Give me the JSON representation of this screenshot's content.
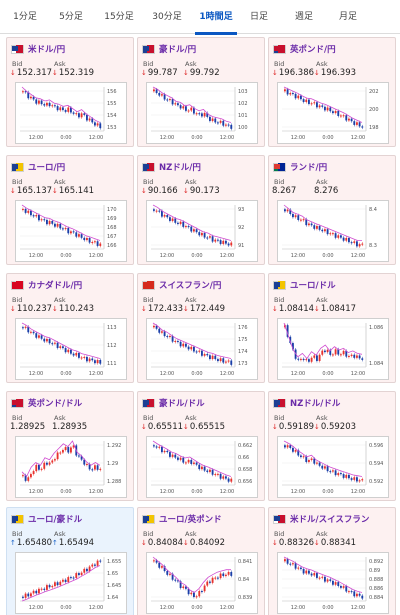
{
  "tabs": [
    "1分足",
    "5分足",
    "15分足",
    "30分足",
    "1時間足",
    "日足",
    "週足",
    "月足"
  ],
  "active_tab": 4,
  "colors": {
    "accent": "#0a57c2",
    "pair_text": "#6a2aa8",
    "down": "#dd2222",
    "up": "#1b64c8",
    "candle_up": "#e8322e",
    "candle_down": "#1a3ea8",
    "ma_line": "#d04bd0"
  },
  "labels": {
    "bid": "Bid",
    "ask": "Ask"
  },
  "x_tick": "12:00",
  "cards": [
    {
      "pair": "米ドル/円",
      "flag": [
        "#ffffff",
        "#1c3f94",
        "#c8102e"
      ],
      "bid": "152.317",
      "ask": "152.319",
      "dir": "down",
      "yticks": [
        "156",
        "155",
        "154",
        "153"
      ],
      "x_ticks": [
        "12:00",
        "0:00",
        "12:00"
      ],
      "trend": [
        155.6,
        155.2,
        154.9,
        154.6,
        154.5,
        154.3,
        154.4,
        154.1,
        154.0,
        153.8,
        153.9,
        153.6,
        153.3,
        153.5,
        153.1,
        152.8,
        152.5,
        152.3
      ]
    },
    {
      "pair": "豪ドル/円",
      "flag": [
        "#1c3f94",
        "#1c3f94",
        "#c8102e"
      ],
      "bid": "99.787",
      "ask": "99.792",
      "dir": "down",
      "yticks": [
        "103",
        "102",
        "101",
        "100"
      ],
      "x_ticks": [
        "12:00",
        "0:00",
        "12:00"
      ],
      "trend": [
        102.8,
        102.6,
        102.3,
        102.1,
        101.9,
        101.6,
        101.5,
        101.2,
        101.3,
        101.0,
        100.8,
        100.9,
        100.5,
        100.3,
        100.2,
        100.1,
        99.9,
        99.8
      ]
    },
    {
      "pair": "英ポンド/円",
      "flag": [
        "#1c3f94",
        "#c8102e",
        "#c8102e"
      ],
      "bid": "196.386",
      "ask": "196.393",
      "dir": "down",
      "yticks": [
        "202",
        "200",
        "198"
      ],
      "x_ticks": [
        "12:00",
        "0:00",
        "12:00"
      ],
      "trend": [
        201.5,
        201.2,
        200.9,
        200.6,
        200.2,
        199.9,
        199.8,
        199.5,
        199.2,
        199.0,
        198.7,
        198.4,
        198.1,
        197.8,
        197.4,
        197.0,
        196.7,
        196.4
      ]
    },
    {
      "pair": "ユーロ/円",
      "flag": [
        "#1c3f94",
        "#1c3f94",
        "#f3c400"
      ],
      "bid": "165.137",
      "ask": "165.141",
      "dir": "down",
      "yticks": [
        "170",
        "169",
        "168",
        "167",
        "166"
      ],
      "x_ticks": [
        "12:00",
        "0:00",
        "12:00"
      ],
      "trend": [
        169.6,
        169.2,
        168.9,
        168.6,
        168.3,
        168.0,
        167.9,
        167.6,
        167.4,
        167.1,
        166.8,
        166.6,
        166.3,
        166.0,
        165.7,
        165.5,
        165.3,
        165.1
      ]
    },
    {
      "pair": "NZドル/円",
      "flag": [
        "#1c3f94",
        "#1c3f94",
        "#c8102e"
      ],
      "bid": "90.166",
      "ask": "90.173",
      "dir": "down",
      "yticks": [
        "93",
        "92",
        "91"
      ],
      "x_ticks": [
        "12:00",
        "0:00",
        "12:00"
      ],
      "trend": [
        93.1,
        92.9,
        92.6,
        92.4,
        92.2,
        92.0,
        91.9,
        91.7,
        91.5,
        91.3,
        91.1,
        90.9,
        90.8,
        90.6,
        90.5,
        90.4,
        90.3,
        90.2
      ]
    },
    {
      "pair": "ランド/円",
      "flag": [
        "#007a4d",
        "#de3831",
        "#002395"
      ],
      "bid": "8.267",
      "ask": "8.276",
      "dir": "none",
      "yticks": [
        "8.4",
        "8.3"
      ],
      "x_ticks": [
        "12:00",
        "0:00",
        "12:00"
      ],
      "trend": [
        8.46,
        8.44,
        8.42,
        8.41,
        8.4,
        8.38,
        8.37,
        8.36,
        8.35,
        8.34,
        8.33,
        8.32,
        8.31,
        8.3,
        8.29,
        8.28,
        8.27,
        8.27
      ]
    },
    {
      "pair": "カナダドル/円",
      "flag": [
        "#d80621",
        "#d80621",
        "#d80621"
      ],
      "bid": "110.237",
      "ask": "110.243",
      "dir": "down",
      "yticks": [
        "113",
        "112",
        "111"
      ],
      "x_ticks": [
        "12:00",
        "0:00",
        "12:00"
      ],
      "trend": [
        113.1,
        112.9,
        112.6,
        112.4,
        112.2,
        112.0,
        111.9,
        111.7,
        111.5,
        111.3,
        111.1,
        110.9,
        110.8,
        110.6,
        110.5,
        110.4,
        110.3,
        110.2
      ]
    },
    {
      "pair": "スイスフラン/円",
      "flag": [
        "#d52b1e",
        "#d52b1e",
        "#d52b1e"
      ],
      "bid": "172.433",
      "ask": "172.449",
      "dir": "down",
      "yticks": [
        "176",
        "175",
        "174",
        "173"
      ],
      "x_ticks": [
        "12:00",
        "0:00",
        "12:00"
      ],
      "trend": [
        175.9,
        175.6,
        175.2,
        175.0,
        174.7,
        174.4,
        174.2,
        174.0,
        173.8,
        173.6,
        173.4,
        173.2,
        173.0,
        172.9,
        172.7,
        172.6,
        172.5,
        172.4
      ]
    },
    {
      "pair": "ユーロ/ドル",
      "flag": [
        "#1c3f94",
        "#1c3f94",
        "#f3c400"
      ],
      "bid": "1.08414",
      "ask": "1.08417",
      "dir": "down",
      "yticks": [
        "1.086",
        "1.084"
      ],
      "x_ticks": [
        "12:00",
        "0:00",
        "12:00"
      ],
      "trend": [
        1.0878,
        1.0862,
        1.0846,
        1.0838,
        1.0842,
        1.0836,
        1.0844,
        1.084,
        1.0848,
        1.0852,
        1.0845,
        1.085,
        1.0846,
        1.0848,
        1.0843,
        1.0845,
        1.0842,
        1.0841
      ]
    },
    {
      "pair": "英ポンド/ドル",
      "flag": [
        "#1c3f94",
        "#c8102e",
        "#c8102e"
      ],
      "bid": "1.28925",
      "ask": "1.28935",
      "dir": "none",
      "yticks": [
        "1.292",
        "1.29",
        "1.288"
      ],
      "x_ticks": [
        "12:00",
        "0:00",
        "12:00"
      ],
      "trend": [
        1.2885,
        1.288,
        1.289,
        1.2895,
        1.2892,
        1.29,
        1.2898,
        1.2905,
        1.291,
        1.2915,
        1.2912,
        1.2918,
        1.2906,
        1.2902,
        1.2896,
        1.2892,
        1.2895,
        1.2892
      ]
    },
    {
      "pair": "豪ドル/ドル",
      "flag": [
        "#1c3f94",
        "#1c3f94",
        "#c8102e"
      ],
      "bid": "0.65511",
      "ask": "0.65515",
      "dir": "down",
      "yticks": [
        "0.662",
        "0.66",
        "0.658",
        "0.656"
      ],
      "x_ticks": [
        "12:00",
        "0:00",
        "12:00"
      ],
      "trend": [
        0.6622,
        0.6616,
        0.6611,
        0.6606,
        0.66,
        0.6597,
        0.6592,
        0.6588,
        0.659,
        0.6584,
        0.6578,
        0.6573,
        0.657,
        0.6566,
        0.6562,
        0.6558,
        0.6554,
        0.6551
      ]
    },
    {
      "pair": "NZドル/ドル",
      "flag": [
        "#1c3f94",
        "#1c3f94",
        "#c8102e"
      ],
      "bid": "0.59189",
      "ask": "0.59203",
      "dir": "down",
      "yticks": [
        "0.596",
        "0.594",
        "0.592"
      ],
      "x_ticks": [
        "12:00",
        "0:00",
        "12:00"
      ],
      "trend": [
        0.5964,
        0.5961,
        0.5957,
        0.5952,
        0.5948,
        0.5944,
        0.5946,
        0.594,
        0.5937,
        0.5934,
        0.5931,
        0.5929,
        0.5927,
        0.5925,
        0.5923,
        0.5921,
        0.592,
        0.5919
      ]
    },
    {
      "pair": "ユーロ/豪ドル",
      "flag": [
        "#1c3f94",
        "#1c3f94",
        "#f3c400"
      ],
      "bid": "1.65480",
      "ask": "1.65494",
      "dir": "up",
      "yticks": [
        "1.655",
        "1.65",
        "1.645",
        "1.64"
      ],
      "x_ticks": [
        "12:00",
        "0:00",
        "12:00"
      ],
      "trend": [
        1.6405,
        1.6412,
        1.642,
        1.6428,
        1.6435,
        1.6442,
        1.6448,
        1.6455,
        1.6462,
        1.647,
        1.6478,
        1.6486,
        1.6494,
        1.6505,
        1.6515,
        1.6528,
        1.654,
        1.6548
      ]
    },
    {
      "pair": "ユーロ/英ポンド",
      "flag": [
        "#1c3f94",
        "#1c3f94",
        "#f3c400"
      ],
      "bid": "0.84084",
      "ask": "0.84092",
      "dir": "down",
      "yticks": [
        "0.841",
        "0.84",
        "0.839"
      ],
      "x_ticks": [
        "12:00",
        "0:00",
        "12:00"
      ],
      "trend": [
        0.8418,
        0.8415,
        0.8412,
        0.8408,
        0.8405,
        0.8402,
        0.8398,
        0.8396,
        0.8392,
        0.839,
        0.8393,
        0.8398,
        0.8402,
        0.8404,
        0.8406,
        0.8407,
        0.8408,
        0.8408
      ]
    },
    {
      "pair": "米ドル/スイスフラン",
      "flag": [
        "#ffffff",
        "#1c3f94",
        "#c8102e"
      ],
      "bid": "0.88326",
      "ask": "0.88341",
      "dir": "down",
      "yticks": [
        "0.892",
        "0.89",
        "0.888",
        "0.886",
        "0.884"
      ],
      "x_ticks": [
        "12:00",
        "0:00",
        "12:00"
      ],
      "trend": [
        0.8915,
        0.891,
        0.8905,
        0.8898,
        0.8892,
        0.8888,
        0.8885,
        0.888,
        0.8876,
        0.8872,
        0.8868,
        0.8863,
        0.8858,
        0.8852,
        0.8846,
        0.884,
        0.8836,
        0.8833
      ]
    }
  ]
}
